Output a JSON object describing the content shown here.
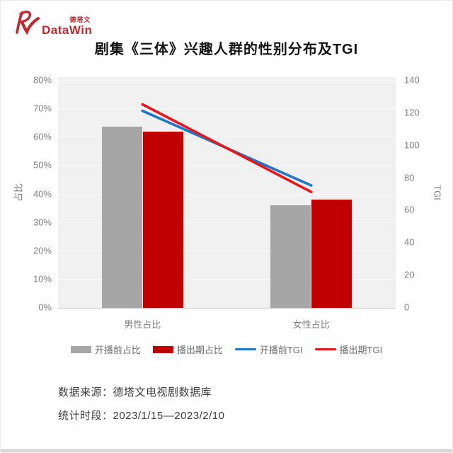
{
  "logo": {
    "cn": "德塔文",
    "en": "DataWin",
    "color": "#c1272d"
  },
  "title": "剧集《三体》兴趣人群的性别分布及TGI",
  "chart_data": {
    "type": "bar",
    "subtype": "grouped-bars-with-lines",
    "categories": [
      "男性占比",
      "女性占比"
    ],
    "bar_series": [
      {
        "name": "开播前占比",
        "color": "#a6a6a6",
        "axis": "left",
        "values": [
          63.5,
          36.0
        ]
      },
      {
        "name": "播出期占比",
        "color": "#c00000",
        "axis": "left",
        "values": [
          61.8,
          37.8
        ]
      }
    ],
    "line_series": [
      {
        "name": "开播前TGI",
        "color": "#1e76c8",
        "axis": "right",
        "values": [
          121,
          75
        ]
      },
      {
        "name": "播出期TGI",
        "color": "#eb141a",
        "axis": "right",
        "values": [
          125,
          71
        ]
      }
    ],
    "left_axis": {
      "label": "占比",
      "min": 0,
      "max": 80,
      "tick_step": 10,
      "tick_labels": [
        "0%",
        "10%",
        "20%",
        "30%",
        "40%",
        "50%",
        "60%",
        "70%",
        "80%"
      ]
    },
    "right_axis": {
      "label": "TGI",
      "min": 0,
      "max": 140,
      "tick_step": 20,
      "tick_labels": [
        "0",
        "20",
        "40",
        "60",
        "80",
        "100",
        "120",
        "140"
      ]
    },
    "grid": true,
    "legend_position": "bottom",
    "plot_background": "#f0f0f0"
  },
  "footer": {
    "source_line": "数据来源：德塔文电视剧数据库",
    "period_line": "统计时段：2023/1/15—2023/2/10"
  }
}
